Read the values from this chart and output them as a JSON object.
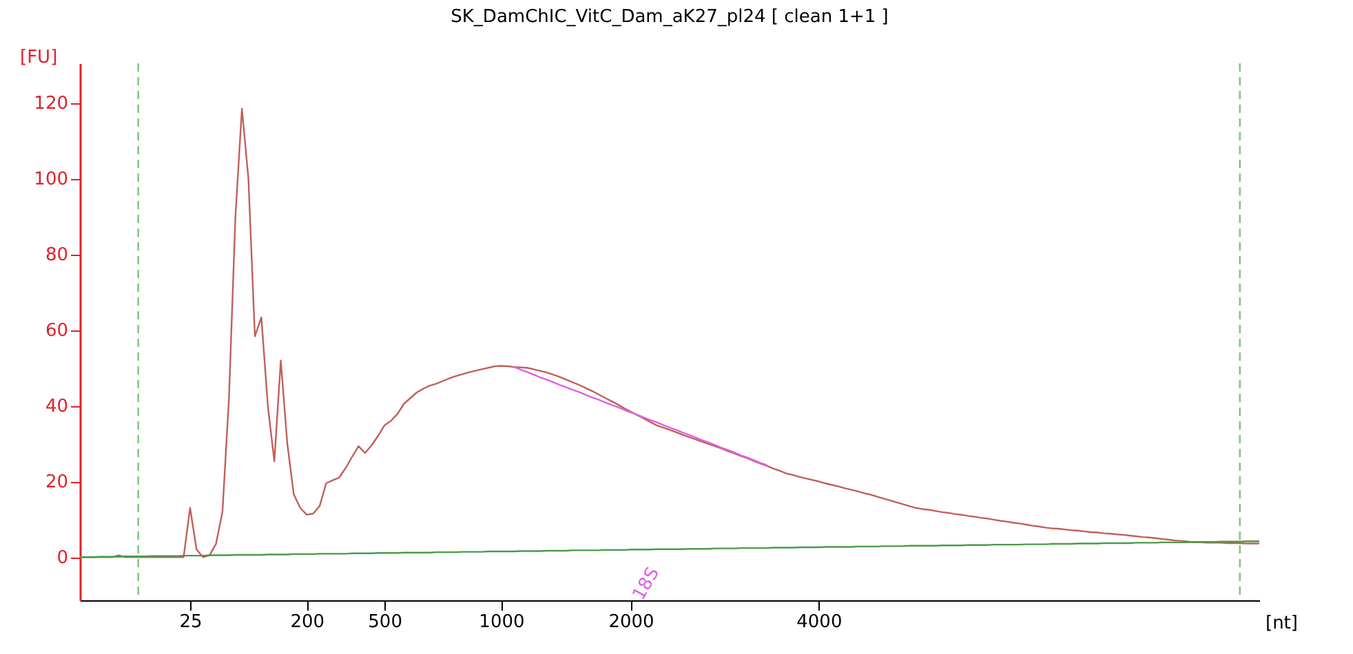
{
  "chart_data": {
    "type": "line",
    "title": "SK_DamChIC_VitC_Dam_aK27_pl24  [ clean 1+1 ]",
    "xlabel": "[nt]",
    "ylabel": "[FU]",
    "categories": [
      null,
      null,
      null,
      null,
      null,
      null,
      null,
      null,
      null,
      null,
      null,
      null,
      null,
      null,
      null,
      null,
      null,
      "25",
      null,
      null,
      null,
      null,
      null,
      null,
      null,
      null,
      null,
      null,
      null,
      null,
      null,
      null,
      null,
      null,
      null,
      "200",
      null,
      null,
      null,
      null,
      null,
      null,
      null,
      null,
      null,
      null,
      null,
      "500",
      null,
      null,
      null,
      null,
      null,
      null,
      null,
      null,
      null,
      null,
      null,
      null,
      null,
      null,
      null,
      null,
      null,
      "1000",
      null,
      null,
      null,
      null,
      null,
      null,
      null,
      null,
      null,
      null,
      null,
      null,
      null,
      null,
      null,
      null,
      null,
      null,
      null,
      "2000",
      null,
      null,
      null,
      null,
      null,
      null,
      null,
      null,
      null,
      null,
      null,
      null,
      null,
      null,
      null,
      null,
      null,
      null,
      null,
      null,
      null,
      null,
      null,
      null,
      null,
      null,
      null,
      null,
      "4000",
      null,
      null,
      null,
      null,
      null,
      null,
      null,
      null,
      null,
      null,
      null,
      null,
      null,
      null,
      null,
      null,
      null,
      null,
      null,
      null,
      null,
      null,
      null,
      null,
      null,
      null,
      null,
      null,
      null,
      null,
      null,
      null,
      null,
      null,
      null,
      null,
      null,
      null,
      null,
      null,
      null,
      null,
      null,
      null,
      null,
      null,
      null,
      null,
      null,
      null,
      null,
      null,
      null,
      null,
      null,
      null,
      null,
      null,
      null,
      null,
      null,
      null,
      null,
      null,
      null,
      null,
      null,
      null
    ],
    "ylim": [
      -11.4,
      130.4
    ],
    "yticks": [
      0,
      20,
      40,
      60,
      80,
      100,
      120
    ],
    "grid": false,
    "marker": "none",
    "line_style": "solid",
    "series": [
      {
        "color": "#c0605a",
        "values": [
          0,
          0,
          0,
          0,
          0,
          0,
          0.5,
          0,
          0,
          0,
          0,
          0,
          0,
          0,
          0,
          0,
          0,
          13,
          2,
          0,
          0.5,
          3.5,
          12,
          42,
          90,
          118.4,
          100,
          58.3,
          63.3,
          40,
          25.3,
          51.9,
          30,
          16.6,
          13,
          11.2,
          11.5,
          13.5,
          19.5,
          20.3,
          21,
          23.5,
          26.5,
          29.3,
          27.5,
          29.5,
          32,
          34.8,
          36,
          37.8,
          40.5,
          42,
          43.5,
          44.5,
          45.3,
          45.8,
          46.5,
          47.2,
          47.8,
          48.3,
          48.8,
          49.2,
          49.6,
          50,
          50.4,
          50.5,
          50.4,
          50.2,
          50.1,
          50,
          49.6,
          49.2,
          48.8,
          48.2,
          47.6,
          46.9,
          46.2,
          45.5,
          44.7,
          43.9,
          43.0,
          42.1,
          41.2,
          40.3,
          39.3,
          38.4,
          37.5,
          36.6,
          35.7,
          34.8,
          34.2,
          33.6,
          33.0,
          32.3,
          31.7,
          31.1,
          30.5,
          29.9,
          29.3,
          28.7,
          28.0,
          27.4,
          26.7,
          26.1,
          25.4,
          24.7,
          24.1,
          23.4,
          22.8,
          22.1,
          21.7,
          21.2,
          20.8,
          20.4,
          20.0,
          19.5,
          19.1,
          18.7,
          18.2,
          17.8,
          17.4,
          16.9,
          16.5,
          16.0,
          15.5,
          15.0,
          14.5,
          14.0,
          13.5,
          13.0,
          12.7,
          12.5,
          12.2,
          11.9,
          11.7,
          11.4,
          11.2,
          10.9,
          10.7,
          10.4,
          10.2,
          9.9,
          9.6,
          9.4,
          9.1,
          8.9,
          8.6,
          8.3,
          8.1,
          7.8,
          7.6,
          7.5,
          7.3,
          7.1,
          7.0,
          6.8,
          6.6,
          6.5,
          6.3,
          6.2,
          6.0,
          5.9,
          5.7,
          5.5,
          5.3,
          5.2,
          5.0,
          4.8,
          4.6,
          4.4,
          4.3,
          4.1,
          3.9,
          3.9,
          3.8,
          3.8,
          3.8,
          3.7,
          3.7,
          3.7,
          3.6,
          3.6,
          3.6
        ]
      },
      {
        "color": "#e060e0",
        "values": [
          null,
          null,
          null,
          null,
          null,
          null,
          null,
          null,
          null,
          null,
          null,
          null,
          null,
          null,
          null,
          null,
          null,
          null,
          null,
          null,
          null,
          null,
          null,
          null,
          null,
          null,
          null,
          null,
          null,
          null,
          null,
          null,
          null,
          null,
          null,
          null,
          null,
          null,
          null,
          null,
          null,
          null,
          null,
          null,
          null,
          null,
          null,
          null,
          null,
          null,
          null,
          null,
          null,
          null,
          null,
          null,
          null,
          null,
          null,
          null,
          null,
          null,
          null,
          null,
          null,
          null,
          null,
          50.2,
          49.5,
          48.9,
          48.2,
          47.5,
          46.9,
          46.2,
          45.5,
          44.9,
          44.2,
          43.6,
          42.9,
          42.2,
          41.6,
          40.9,
          40.2,
          39.6,
          38.9,
          38.2,
          37.6,
          36.9,
          36.2,
          35.6,
          34.9,
          34.2,
          33.6,
          32.9,
          32.3,
          31.6,
          30.9,
          30.3,
          29.6,
          28.9,
          28.3,
          27.6,
          26.9,
          26.3,
          25.6,
          24.9,
          24.3,
          null,
          null,
          null,
          null,
          null,
          null,
          null,
          null,
          null,
          null,
          null,
          null,
          null,
          null,
          null,
          null,
          null,
          null,
          null,
          null,
          null,
          null,
          null,
          null,
          null,
          null,
          null,
          null,
          null,
          null,
          null,
          null,
          null,
          null,
          null,
          null,
          null,
          null,
          null,
          null,
          null,
          null,
          null,
          null,
          null,
          null,
          null,
          null,
          null,
          null,
          null,
          null,
          null,
          null,
          null,
          null,
          null,
          null,
          null,
          null,
          null,
          null,
          null,
          null,
          null,
          null,
          null,
          null,
          null,
          null,
          null,
          null,
          null,
          null,
          null,
          null
        ]
      },
      {
        "color": "#4a9a4a",
        "values": [
          0,
          0,
          0,
          0.1,
          0.1,
          0.1,
          0.1,
          0.2,
          0.2,
          0.2,
          0.2,
          0.3,
          0.3,
          0.3,
          0.3,
          0.3,
          0.4,
          0.4,
          0.4,
          0.4,
          0.5,
          0.5,
          0.5,
          0.5,
          0.6,
          0.6,
          0.6,
          0.6,
          0.6,
          0.7,
          0.7,
          0.7,
          0.7,
          0.8,
          0.8,
          0.8,
          0.8,
          0.9,
          0.9,
          0.9,
          0.9,
          0.9,
          1.0,
          1.0,
          1.0,
          1.0,
          1.1,
          1.1,
          1.1,
          1.1,
          1.2,
          1.2,
          1.2,
          1.2,
          1.2,
          1.3,
          1.3,
          1.3,
          1.3,
          1.4,
          1.4,
          1.4,
          1.4,
          1.5,
          1.5,
          1.5,
          1.5,
          1.5,
          1.6,
          1.6,
          1.6,
          1.6,
          1.7,
          1.7,
          1.7,
          1.7,
          1.8,
          1.8,
          1.8,
          1.8,
          1.8,
          1.9,
          1.9,
          1.9,
          1.9,
          2.0,
          2.0,
          2.0,
          2.0,
          2.1,
          2.1,
          2.1,
          2.1,
          2.1,
          2.2,
          2.2,
          2.2,
          2.2,
          2.3,
          2.3,
          2.3,
          2.3,
          2.4,
          2.4,
          2.4,
          2.4,
          2.4,
          2.5,
          2.5,
          2.5,
          2.5,
          2.6,
          2.6,
          2.6,
          2.6,
          2.7,
          2.7,
          2.7,
          2.7,
          2.7,
          2.8,
          2.8,
          2.8,
          2.8,
          2.9,
          2.9,
          2.9,
          2.9,
          3.0,
          3.0,
          3.0,
          3.0,
          3.0,
          3.1,
          3.1,
          3.1,
          3.1,
          3.2,
          3.2,
          3.2,
          3.2,
          3.3,
          3.3,
          3.3,
          3.3,
          3.3,
          3.4,
          3.4,
          3.4,
          3.4,
          3.5,
          3.5,
          3.5,
          3.5,
          3.6,
          3.6,
          3.6,
          3.6,
          3.7,
          3.7,
          3.7,
          3.7,
          3.7,
          3.8,
          3.8,
          3.8,
          3.8,
          3.9,
          3.9,
          3.9,
          3.9,
          3.9,
          4.0,
          4.0,
          4.0,
          4.0,
          4.1,
          4.1,
          4.1,
          4.1,
          4.2,
          4.2,
          4.2
        ]
      }
    ],
    "annotations": [
      "18S"
    ]
  }
}
